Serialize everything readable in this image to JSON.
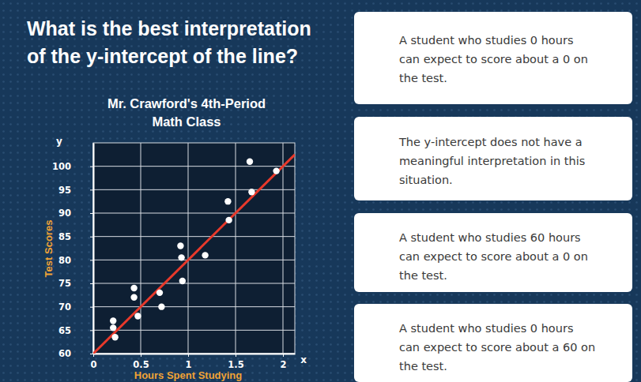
{
  "question": [
    "What is the best interpretation",
    "of the y-intercept of the line?"
  ],
  "options": [
    [
      "A student who studies 0 hours",
      "can expect to score about a 0 on",
      "the test."
    ],
    [
      "The y-intercept does not have a",
      "meaningful interpretation in this",
      "situation."
    ],
    [
      "A student who studies 60 hours",
      "can expect to score about a 0 on",
      "the test."
    ],
    [
      "A student who studies 0 hours",
      "can expect to score about a 60 on",
      "the test."
    ]
  ],
  "chart_data": {
    "type": "scatter",
    "title": [
      "Mr. Crawford's 4th-Period",
      "Math Class"
    ],
    "x_label": "Hours Spent Studying",
    "y_label": "Test Scores",
    "x_axis_name": "x",
    "y_axis_name": "y",
    "xlim": [
      0,
      2.125
    ],
    "ylim": [
      60,
      105
    ],
    "xticks": [
      0,
      0.5,
      1,
      1.5,
      2
    ],
    "yticks": [
      60,
      65,
      70,
      75,
      80,
      85,
      90,
      95,
      100
    ],
    "grid": true,
    "series": [
      {
        "type": "scatter",
        "color": "#ffffff",
        "marker": "circle",
        "x": [
          0.21,
          0.21,
          0.23,
          0.43,
          0.43,
          0.47,
          0.7,
          0.72,
          0.92,
          0.93,
          0.94,
          1.18,
          1.42,
          1.43,
          1.65,
          1.67,
          1.93
        ],
        "values": [
          67,
          65.5,
          63.5,
          74,
          72,
          68,
          73,
          70,
          83,
          80.5,
          75.5,
          81,
          92.5,
          88.5,
          101,
          94.5,
          99
        ]
      },
      {
        "type": "line",
        "color": "#e8392b",
        "line_style": "solid",
        "x": [
          0,
          2.125
        ],
        "values": [
          60,
          102.5
        ]
      }
    ]
  }
}
